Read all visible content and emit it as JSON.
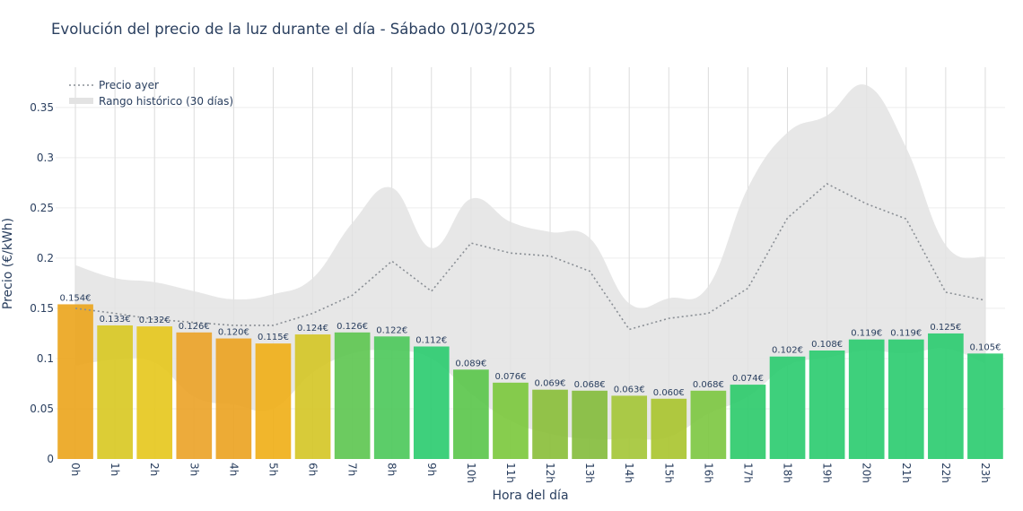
{
  "chart_data": {
    "type": "bar",
    "title": "Evolución del precio de la luz durante el día - Sábado 01/03/2025",
    "xlabel": "Hora del día",
    "ylabel": "Precio (€/kWh)",
    "ylim": [
      0,
      0.39
    ],
    "yticks": [
      0,
      0.05,
      0.1,
      0.15,
      0.2,
      0.25,
      0.3,
      0.35
    ],
    "ytick_labels": [
      "0",
      "0.05",
      "0.1",
      "0.15",
      "0.2",
      "0.25",
      "0.3",
      "0.35"
    ],
    "categories": [
      "0h",
      "1h",
      "2h",
      "3h",
      "4h",
      "5h",
      "6h",
      "7h",
      "8h",
      "9h",
      "10h",
      "11h",
      "12h",
      "13h",
      "14h",
      "15h",
      "16h",
      "17h",
      "18h",
      "19h",
      "20h",
      "21h",
      "22h",
      "23h"
    ],
    "series": [
      {
        "type": "bar",
        "values": [
          0.154,
          0.133,
          0.132,
          0.126,
          0.12,
          0.115,
          0.124,
          0.126,
          0.122,
          0.112,
          0.089,
          0.076,
          0.069,
          0.068,
          0.063,
          0.06,
          0.068,
          0.074,
          0.102,
          0.108,
          0.119,
          0.119,
          0.125,
          0.105
        ],
        "labels": [
          "0.154€",
          "0.133€",
          "0.132€",
          "0.126€",
          "0.120€",
          "0.115€",
          "0.124€",
          "0.126€",
          "0.122€",
          "0.112€",
          "0.089€",
          "0.076€",
          "0.069€",
          "0.068€",
          "0.063€",
          "0.060€",
          "0.068€",
          "0.074€",
          "0.102€",
          "0.108€",
          "0.119€",
          "0.119€",
          "0.125€",
          "0.105€"
        ],
        "colors": [
          "#eca61f",
          "#d9c925",
          "#e6c81f",
          "#eca42a",
          "#eca424",
          "#f0b01a",
          "#d5c728",
          "#5fc752",
          "#4ec95c",
          "#2ecc71",
          "#5cc74d",
          "#7dc93f",
          "#8bbf3c",
          "#86bd3e",
          "#a5c73a",
          "#aac631",
          "#7ec843",
          "#2fcb6c",
          "#2ecc71",
          "#2ecc71",
          "#2ecc71",
          "#2ecc71",
          "#2ecc71",
          "#2ecc71"
        ]
      },
      {
        "name": "Precio ayer",
        "type": "line",
        "style": "dotted",
        "color": "#8a8f95",
        "values": [
          0.15,
          0.145,
          0.139,
          0.136,
          0.133,
          0.133,
          0.145,
          0.163,
          0.197,
          0.167,
          0.215,
          0.205,
          0.202,
          0.187,
          0.129,
          0.14,
          0.145,
          0.17,
          0.24,
          0.274,
          0.254,
          0.239,
          0.166,
          0.158
        ]
      },
      {
        "name": "Rango histórico (30 días)",
        "type": "area",
        "color": "#e3e3e3",
        "upper": [
          0.193,
          0.18,
          0.176,
          0.167,
          0.159,
          0.164,
          0.18,
          0.235,
          0.27,
          0.21,
          0.259,
          0.236,
          0.226,
          0.22,
          0.155,
          0.16,
          0.172,
          0.27,
          0.325,
          0.342,
          0.372,
          0.31,
          0.213,
          0.201
        ],
        "lower": [
          0.093,
          0.099,
          0.096,
          0.062,
          0.054,
          0.05,
          0.086,
          0.105,
          0.108,
          0.1,
          0.065,
          0.038,
          0.025,
          0.02,
          0.02,
          0.022,
          0.045,
          0.062,
          0.093,
          0.101,
          0.108,
          0.105,
          0.11,
          0.095
        ]
      }
    ],
    "legend": {
      "position": "top-left",
      "items": [
        "Precio ayer",
        "Rango histórico (30 días)"
      ]
    },
    "grid": true
  }
}
